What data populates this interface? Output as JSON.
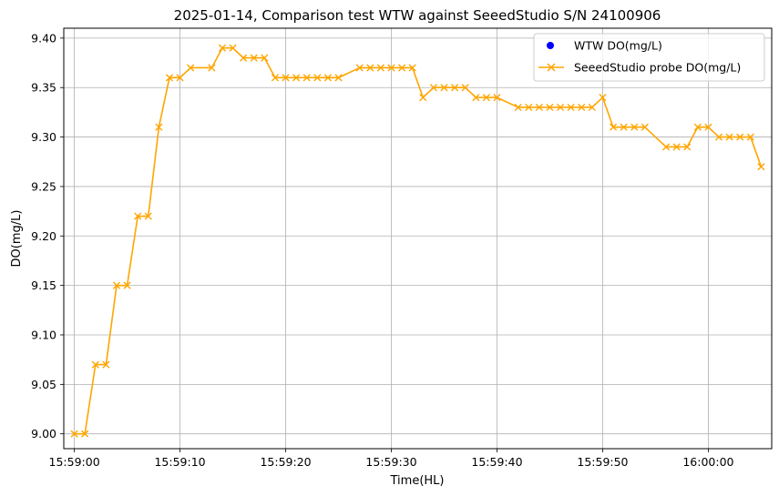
{
  "chart_data": {
    "type": "line",
    "title": "2025-01-14, Comparison test WTW against SeeedStudio S/N 24100906",
    "xlabel": "Time(HL)",
    "ylabel": "DO(mg/L)",
    "ylim": [
      8.985,
      9.41
    ],
    "xlim": [
      "15:58:59",
      "16:00:06"
    ],
    "grid": true,
    "legend_position": "top-right",
    "x_ticks": [
      "15:59:00",
      "15:59:10",
      "15:59:20",
      "15:59:30",
      "15:59:40",
      "15:59:50",
      "16:00:00"
    ],
    "y_ticks": [
      "9.00",
      "9.05",
      "9.10",
      "9.15",
      "9.20",
      "9.25",
      "9.30",
      "9.35",
      "9.40"
    ],
    "series": [
      {
        "name": "WTW DO(mg/L)",
        "marker": "circle",
        "color": "#0000ff",
        "x": [],
        "values": []
      },
      {
        "name": "SeeedStudio probe DO(mg/L)",
        "marker": "x",
        "color": "#ffa500",
        "x": [
          "15:59:00",
          "15:59:01",
          "15:59:02",
          "15:59:03",
          "15:59:04",
          "15:59:05",
          "15:59:06",
          "15:59:07",
          "15:59:08",
          "15:59:09",
          "15:59:10",
          "15:59:11",
          "15:59:13",
          "15:59:14",
          "15:59:15",
          "15:59:16",
          "15:59:17",
          "15:59:18",
          "15:59:19",
          "15:59:20",
          "15:59:21",
          "15:59:22",
          "15:59:23",
          "15:59:24",
          "15:59:25",
          "15:59:27",
          "15:59:28",
          "15:59:29",
          "15:59:30",
          "15:59:31",
          "15:59:32",
          "15:59:33",
          "15:59:34",
          "15:59:35",
          "15:59:36",
          "15:59:37",
          "15:59:38",
          "15:59:39",
          "15:59:40",
          "15:59:42",
          "15:59:43",
          "15:59:44",
          "15:59:45",
          "15:59:46",
          "15:59:47",
          "15:59:48",
          "15:59:49",
          "15:59:50",
          "15:59:51",
          "15:59:52",
          "15:59:53",
          "15:59:54",
          "15:59:56",
          "15:59:57",
          "15:59:58",
          "15:59:59",
          "16:00:00",
          "16:00:01",
          "16:00:02",
          "16:00:03",
          "16:00:04",
          "16:00:05"
        ],
        "values": [
          9.0,
          9.0,
          9.07,
          9.07,
          9.15,
          9.15,
          9.22,
          9.22,
          9.31,
          9.36,
          9.36,
          9.37,
          9.37,
          9.39,
          9.39,
          9.38,
          9.38,
          9.38,
          9.36,
          9.36,
          9.36,
          9.36,
          9.36,
          9.36,
          9.36,
          9.37,
          9.37,
          9.37,
          9.37,
          9.37,
          9.37,
          9.34,
          9.35,
          9.35,
          9.35,
          9.35,
          9.34,
          9.34,
          9.34,
          9.33,
          9.33,
          9.33,
          9.33,
          9.33,
          9.33,
          9.33,
          9.33,
          9.34,
          9.31,
          9.31,
          9.31,
          9.31,
          9.29,
          9.29,
          9.29,
          9.31,
          9.31,
          9.3,
          9.3,
          9.3,
          9.3,
          9.27
        ]
      }
    ]
  }
}
